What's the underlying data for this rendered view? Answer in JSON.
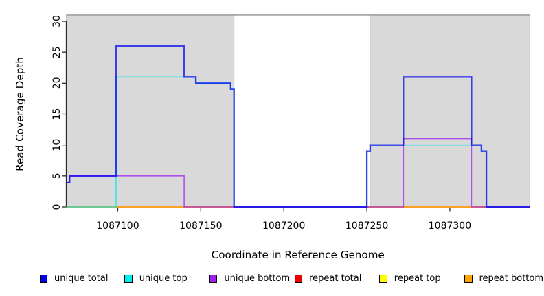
{
  "chart_data": {
    "type": "line",
    "subtype": "step-coverage-plot",
    "title": "",
    "xlabel": "Coordinate in Reference Genome",
    "ylabel": "Read Coverage Depth",
    "x_domain": [
      1087069,
      1087348
    ],
    "y_domain": [
      0,
      31
    ],
    "x_ticks": [
      1087100,
      1087150,
      1087200,
      1087250,
      1087300
    ],
    "y_ticks": [
      0,
      5,
      10,
      15,
      20,
      25,
      30
    ],
    "grid": false,
    "legend_position": "bottom",
    "masked_regions": [
      [
        1087069,
        1087170
      ],
      [
        1087252,
        1087348
      ]
    ],
    "mask_top_value": 31,
    "colors": {
      "background": "#FFFFFF",
      "mask_fill": "#D9D9D9",
      "mask_border": "#C6C6C6",
      "mask_top_line": "#919191",
      "axis": "#2B2B2B",
      "text": "#000000"
    },
    "series": [
      {
        "id": "repeat-total",
        "name": "repeat total",
        "color": "#EE0000",
        "opacity": 1,
        "width": 1.5,
        "steps": [
          [
            1087069,
            0
          ]
        ]
      },
      {
        "id": "repeat-top",
        "name": "repeat top",
        "color": "#FFFF00",
        "opacity": 1,
        "width": 1.5,
        "steps": [
          [
            1087069,
            0
          ]
        ]
      },
      {
        "id": "repeat-bottom",
        "name": "repeat bottom",
        "color": "#FF9C20",
        "opacity": 1,
        "width": 1.6,
        "steps": [
          [
            1087069,
            0
          ]
        ]
      },
      {
        "id": "unique-top",
        "name": "unique top",
        "color": "#00E8E8",
        "opacity": 0.75,
        "width": 1.6,
        "steps": [
          [
            1087069,
            0
          ],
          [
            1087099,
            21
          ],
          [
            1087147,
            20
          ],
          [
            1087168,
            19
          ],
          [
            1087170,
            0
          ],
          [
            1087250,
            9
          ],
          [
            1087252,
            10
          ],
          [
            1087319,
            9
          ],
          [
            1087322,
            0
          ]
        ]
      },
      {
        "id": "unique-bottom",
        "name": "unique bottom",
        "color": "#A020F0",
        "opacity": 0.75,
        "width": 1.6,
        "steps": [
          [
            1087069,
            4
          ],
          [
            1087071,
            5
          ],
          [
            1087140,
            0
          ],
          [
            1087272,
            11
          ],
          [
            1087313,
            0
          ]
        ]
      },
      {
        "id": "unique-total",
        "name": "unique total",
        "color": "#0000EE",
        "opacity": 0.72,
        "width": 2.3,
        "steps": [
          [
            1087069,
            4
          ],
          [
            1087071,
            5
          ],
          [
            1087099,
            26
          ],
          [
            1087140,
            21
          ],
          [
            1087147,
            20
          ],
          [
            1087168,
            19
          ],
          [
            1087170,
            0
          ],
          [
            1087250,
            9
          ],
          [
            1087252,
            10
          ],
          [
            1087272,
            21
          ],
          [
            1087313,
            10
          ],
          [
            1087319,
            9
          ],
          [
            1087322,
            0
          ]
        ]
      }
    ],
    "legend": [
      {
        "label": "unique total",
        "color": "#0000EE"
      },
      {
        "label": "unique top",
        "color": "#00EEEE"
      },
      {
        "label": "unique bottom",
        "color": "#A020F0"
      },
      {
        "label": "repeat total",
        "color": "#EE0000"
      },
      {
        "label": "repeat top",
        "color": "#FFFF00"
      },
      {
        "label": "repeat bottom",
        "color": "#FFA500"
      }
    ]
  }
}
